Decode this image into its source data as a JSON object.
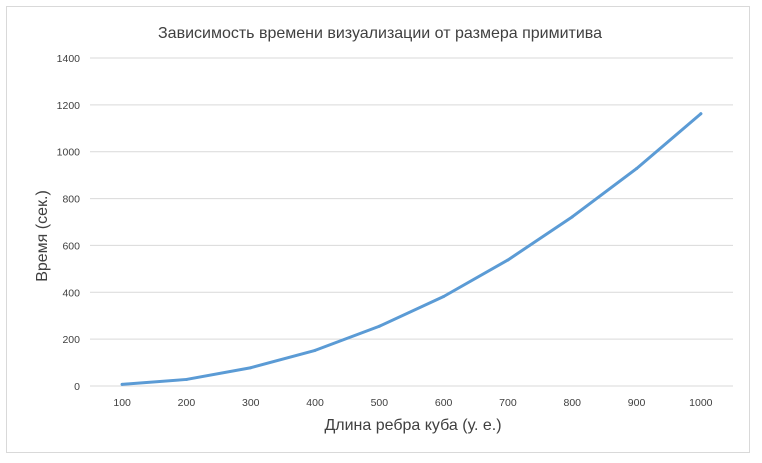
{
  "chart_data": {
    "type": "line",
    "title": "Зависимость времени визуализации от размера примитива",
    "xlabel": "Длина ребра куба (у. е.)",
    "ylabel": "Время (сек.)",
    "categories": [
      "100",
      "200",
      "300",
      "400",
      "500",
      "600",
      "700",
      "800",
      "900",
      "1000"
    ],
    "y_ticks": [
      "0",
      "200",
      "400",
      "600",
      "800",
      "1000",
      "1200",
      "1400"
    ],
    "ylim": [
      0,
      1400
    ],
    "grid": true,
    "legend": "none",
    "series": [
      {
        "values": [
          7,
          28,
          78,
          152,
          255,
          382,
          538,
          722,
          928,
          1162
        ],
        "color": "#5b9bd5"
      }
    ]
  }
}
